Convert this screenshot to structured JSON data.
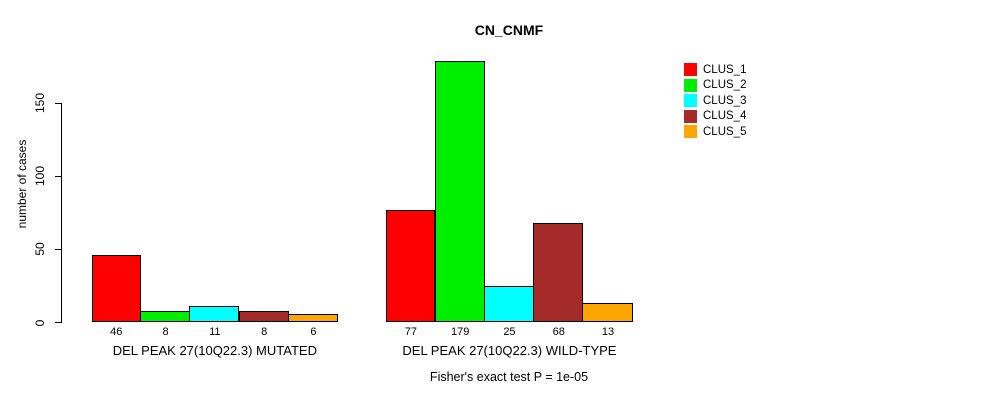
{
  "title": "CN_CNMF",
  "chart_data": {
    "type": "bar",
    "title": "CN_CNMF",
    "xlabel": "",
    "ylabel": "number of cases",
    "ylim": [
      0,
      180
    ],
    "yticks": [
      0,
      50,
      100,
      150
    ],
    "grid": false,
    "legend_position": "top-right",
    "groups": [
      {
        "label": "DEL PEAK 27(10Q22.3) MUTATED",
        "values": [
          46,
          8,
          11,
          8,
          6
        ]
      },
      {
        "label": "DEL PEAK 27(10Q22.3) WILD-TYPE",
        "values": [
          77,
          179,
          25,
          68,
          13
        ]
      }
    ],
    "series": [
      {
        "name": "CLUS_1",
        "color": "#FF0000"
      },
      {
        "name": "CLUS_2",
        "color": "#00EE00"
      },
      {
        "name": "CLUS_3",
        "color": "#00FFFF"
      },
      {
        "name": "CLUS_4",
        "color": "#A52A2A"
      },
      {
        "name": "CLUS_5",
        "color": "#FFA500"
      }
    ],
    "annotation": "Fisher's exact test P = 1e-05"
  }
}
